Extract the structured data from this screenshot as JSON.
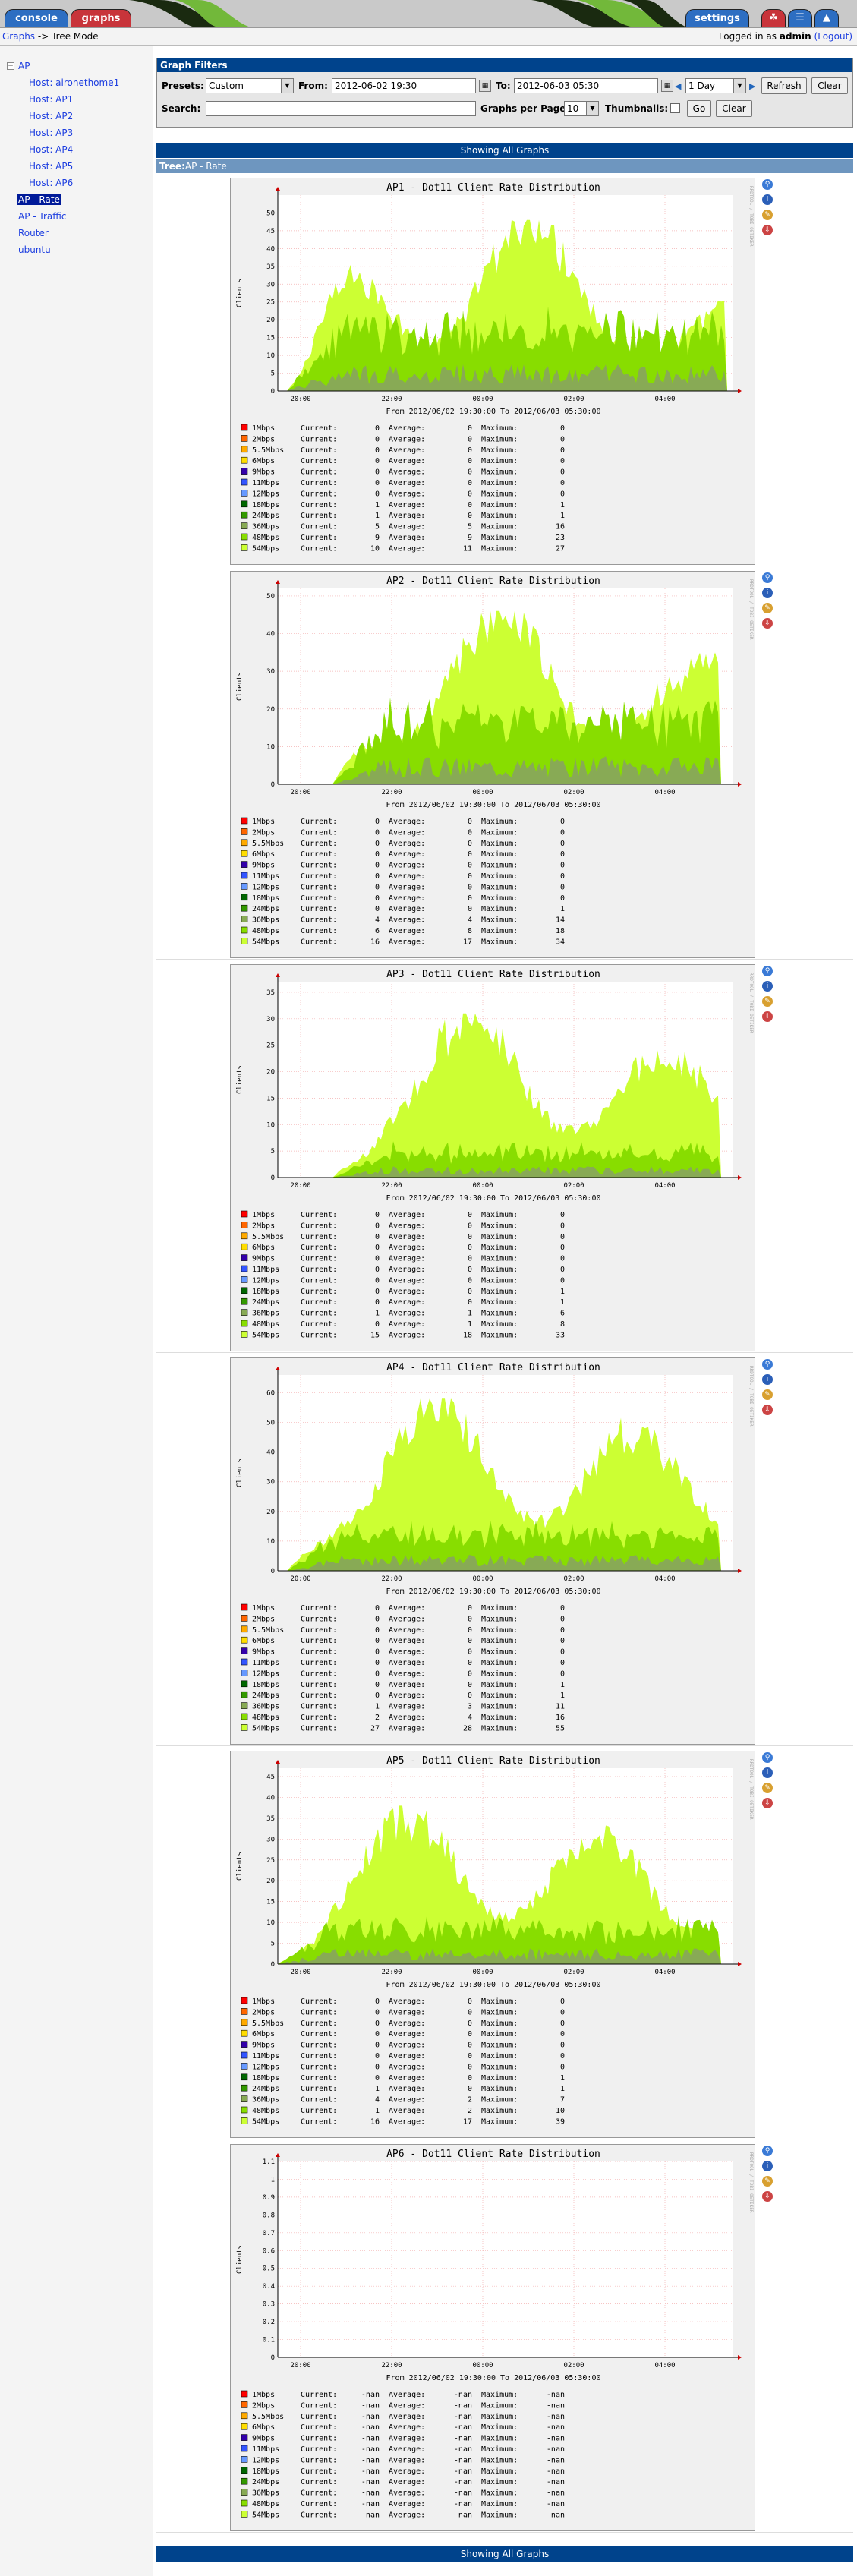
{
  "tabs": {
    "console": "console",
    "graphs": "graphs",
    "settings": "settings"
  },
  "breadcrumb": {
    "graphs": "Graphs",
    "sep": " -> ",
    "mode": "Tree Mode"
  },
  "login": {
    "prefix": "Logged in as ",
    "user": "admin",
    "logout": "(Logout)"
  },
  "tree": {
    "root": "AP",
    "items": [
      "Host: aironethome1",
      "Host: AP1",
      "Host: AP2",
      "Host: AP3",
      "Host: AP4",
      "Host: AP5",
      "Host: AP6"
    ],
    "selected": "AP - Rate",
    "others": [
      "AP - Traffic",
      "Router",
      "ubuntu"
    ]
  },
  "filters": {
    "title": "Graph Filters",
    "presets_label": "Presets:",
    "presets_value": "Custom",
    "from_label": "From:",
    "from_value": "2012-06-02 19:30",
    "to_label": "To:",
    "to_value": "2012-06-03 05:30",
    "span_value": "1 Day",
    "refresh": "Refresh",
    "clear": "Clear",
    "search_label": "Search:",
    "search_value": "",
    "gpp_label": "Graphs per Page:",
    "gpp_value": "10",
    "thumbs_label": "Thumbnails:",
    "go": "Go",
    "clear2": "Clear"
  },
  "show_all": "Showing All Graphs",
  "tree_label": {
    "prefix": "Tree:",
    "name": "AP - Rate"
  },
  "graph_common": {
    "ylabel": "Clients",
    "xticks": [
      "20:00",
      "22:00",
      "00:00",
      "02:00",
      "04:00"
    ],
    "range": "From 2012/06/02 19:30:00 To 2012/06/03 05:30:00",
    "rrdtool": "RRDTOOL / TOBI OETIKER",
    "series": [
      "1Mbps",
      "2Mbps",
      "5.5Mbps",
      "6Mbps",
      "9Mbps",
      "11Mbps",
      "12Mbps",
      "18Mbps",
      "24Mbps",
      "36Mbps",
      "48Mbps",
      "54Mbps"
    ],
    "colors": [
      "#ff0000",
      "#ff6600",
      "#ffaa00",
      "#ffdd00",
      "#3300aa",
      "#3355ff",
      "#6699ff",
      "#006600",
      "#339900",
      "#88aa55",
      "#88dd00",
      "#ccff33"
    ],
    "current_label": "Current:",
    "average_label": "Average:",
    "maximum_label": "Maximum:"
  },
  "chart_data": [
    {
      "type": "area",
      "title": "AP1 - Dot11 Client Rate Distribution",
      "ylim": [
        0,
        55
      ],
      "yticks": [
        0,
        5,
        10,
        15,
        20,
        25,
        30,
        35,
        40,
        45,
        50
      ],
      "current": [
        "0",
        "0",
        "0",
        "0",
        "0",
        "0",
        "0",
        "1",
        "1",
        "5",
        "9",
        "10"
      ],
      "average": [
        "0",
        "0",
        "0",
        "0",
        "0",
        "0",
        "0",
        "0",
        "0",
        "5",
        "9",
        "11"
      ],
      "maximum": [
        "0",
        "0",
        "0",
        "0",
        "0",
        "0",
        "0",
        "1",
        "1",
        "16",
        "23",
        "27"
      ],
      "shape": {
        "start": 0.02,
        "end": 0.98,
        "peak": 48,
        "base": 25,
        "mid": 14
      }
    },
    {
      "type": "area",
      "title": "AP2 - Dot11 Client Rate Distribution",
      "ylim": [
        0,
        52
      ],
      "yticks": [
        0,
        10,
        20,
        30,
        40,
        50
      ],
      "current": [
        "0",
        "0",
        "0",
        "0",
        "0",
        "0",
        "0",
        "0",
        "0",
        "4",
        "6",
        "16"
      ],
      "average": [
        "0",
        "0",
        "0",
        "0",
        "0",
        "0",
        "0",
        "0",
        "0",
        "4",
        "8",
        "17"
      ],
      "maximum": [
        "0",
        "0",
        "0",
        "0",
        "0",
        "0",
        "0",
        "0",
        "1",
        "14",
        "18",
        "34"
      ],
      "shape": {
        "start": 0.12,
        "end": 0.97,
        "peak": 46,
        "base": 32,
        "mid": 14
      }
    },
    {
      "type": "area",
      "title": "AP3 - Dot11 Client Rate Distribution",
      "ylim": [
        0,
        37
      ],
      "yticks": [
        0,
        5,
        10,
        15,
        20,
        25,
        30,
        35
      ],
      "current": [
        "0",
        "0",
        "0",
        "0",
        "0",
        "0",
        "0",
        "0",
        "0",
        "1",
        "0",
        "15"
      ],
      "average": [
        "0",
        "0",
        "0",
        "0",
        "0",
        "0",
        "0",
        "0",
        "0",
        "1",
        "1",
        "18"
      ],
      "maximum": [
        "0",
        "0",
        "0",
        "0",
        "0",
        "0",
        "0",
        "1",
        "1",
        "6",
        "8",
        "33"
      ],
      "shape": {
        "start": 0.12,
        "end": 0.97,
        "peak": 31,
        "base": 22,
        "mid": 4
      }
    },
    {
      "type": "area",
      "title": "AP4 - Dot11 Client Rate Distribution",
      "ylim": [
        0,
        66
      ],
      "yticks": [
        0,
        10,
        20,
        30,
        40,
        50,
        60
      ],
      "current": [
        "0",
        "0",
        "0",
        "0",
        "0",
        "0",
        "0",
        "0",
        "0",
        "1",
        "2",
        "27"
      ],
      "average": [
        "0",
        "0",
        "0",
        "0",
        "0",
        "0",
        "0",
        "0",
        "0",
        "3",
        "4",
        "28"
      ],
      "maximum": [
        "0",
        "0",
        "0",
        "0",
        "0",
        "0",
        "0",
        "1",
        "1",
        "11",
        "16",
        "55"
      ],
      "shape": {
        "start": 0.02,
        "end": 0.97,
        "peak": 58,
        "base": 42,
        "mid": 10
      }
    },
    {
      "type": "area",
      "title": "AP5 - Dot11 Client Rate Distribution",
      "ylim": [
        0,
        47
      ],
      "yticks": [
        0,
        5,
        10,
        15,
        20,
        25,
        30,
        35,
        40,
        45
      ],
      "current": [
        "0",
        "0",
        "0",
        "0",
        "0",
        "0",
        "0",
        "0",
        "1",
        "4",
        "1",
        "16"
      ],
      "average": [
        "0",
        "0",
        "0",
        "0",
        "0",
        "0",
        "0",
        "0",
        "0",
        "2",
        "2",
        "17"
      ],
      "maximum": [
        "0",
        "0",
        "0",
        "0",
        "0",
        "0",
        "0",
        "1",
        "1",
        "7",
        "10",
        "39"
      ],
      "shape": {
        "start": 0.0,
        "end": 0.97,
        "peak": 38,
        "base": 22,
        "mid": 7
      }
    },
    {
      "type": "area",
      "title": "AP6 - Dot11 Client Rate Distribution",
      "ylim": [
        0,
        1.1
      ],
      "yticks": [
        0,
        0.1,
        0.2,
        0.3,
        0.4,
        0.5,
        0.6,
        0.7,
        0.8,
        0.9,
        1.0,
        1.1
      ],
      "current": [
        "-nan",
        "-nan",
        "-nan",
        "-nan",
        "-nan",
        "-nan",
        "-nan",
        "-nan",
        "-nan",
        "-nan",
        "-nan",
        "-nan"
      ],
      "average": [
        "-nan",
        "-nan",
        "-nan",
        "-nan",
        "-nan",
        "-nan",
        "-nan",
        "-nan",
        "-nan",
        "-nan",
        "-nan",
        "-nan"
      ],
      "maximum": [
        "-nan",
        "-nan",
        "-nan",
        "-nan",
        "-nan",
        "-nan",
        "-nan",
        "-nan",
        "-nan",
        "-nan",
        "-nan",
        "-nan"
      ],
      "shape": null
    }
  ]
}
